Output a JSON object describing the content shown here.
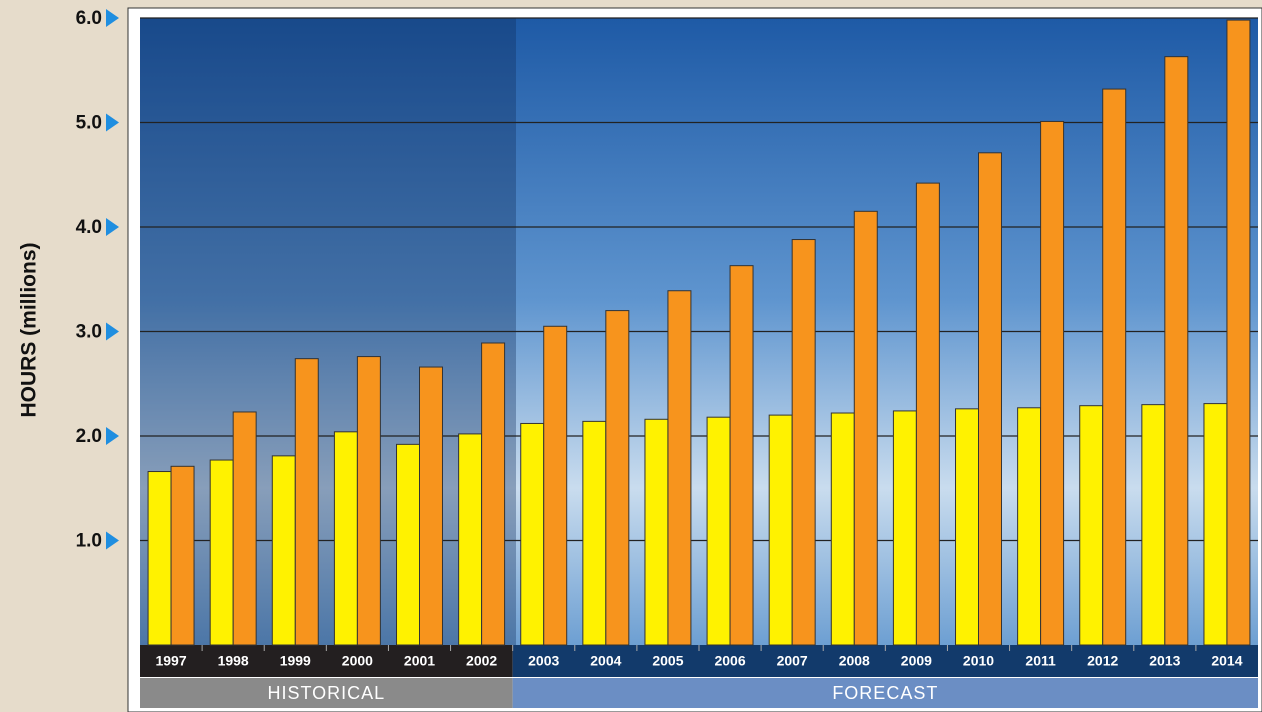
{
  "chart_data": {
    "type": "bar",
    "y_label": "HOURS (millions)",
    "categories": [
      "1997",
      "1998",
      "1999",
      "2000",
      "2001",
      "2002",
      "2003",
      "2004",
      "2005",
      "2006",
      "2007",
      "2008",
      "2009",
      "2010",
      "2011",
      "2012",
      "2013",
      "2014"
    ],
    "series": [
      {
        "color": "#fff200",
        "values": [
          1.66,
          1.77,
          1.81,
          2.04,
          1.92,
          2.02,
          2.12,
          2.14,
          2.16,
          2.18,
          2.2,
          2.22,
          2.24,
          2.26,
          2.27,
          2.29,
          2.3,
          2.31
        ]
      },
      {
        "color": "#f7941d",
        "values": [
          1.71,
          2.23,
          2.74,
          2.76,
          2.66,
          2.89,
          3.05,
          3.2,
          3.39,
          3.63,
          3.88,
          4.15,
          4.42,
          4.71,
          5.01,
          5.32,
          5.63,
          5.98
        ]
      }
    ],
    "groups": [
      {
        "label": "HISTORICAL",
        "from": "1997",
        "to": "2002",
        "color": "#8a8a8a",
        "band_color": "#231f20"
      },
      {
        "label": "FORECAST",
        "from": "2003",
        "to": "2014",
        "color": "#6b8ec4",
        "band_color": "#123a6b"
      }
    ],
    "ylim": [
      0,
      6
    ],
    "yticks": [
      {
        "value": 1,
        "label": "1.0"
      },
      {
        "value": 2,
        "label": "2.0"
      },
      {
        "value": 3,
        "label": "3.0"
      },
      {
        "value": 4,
        "label": "4.0"
      },
      {
        "value": 5,
        "label": "5.0"
      },
      {
        "value": 6,
        "label": "6.0"
      }
    ],
    "grid": true
  }
}
